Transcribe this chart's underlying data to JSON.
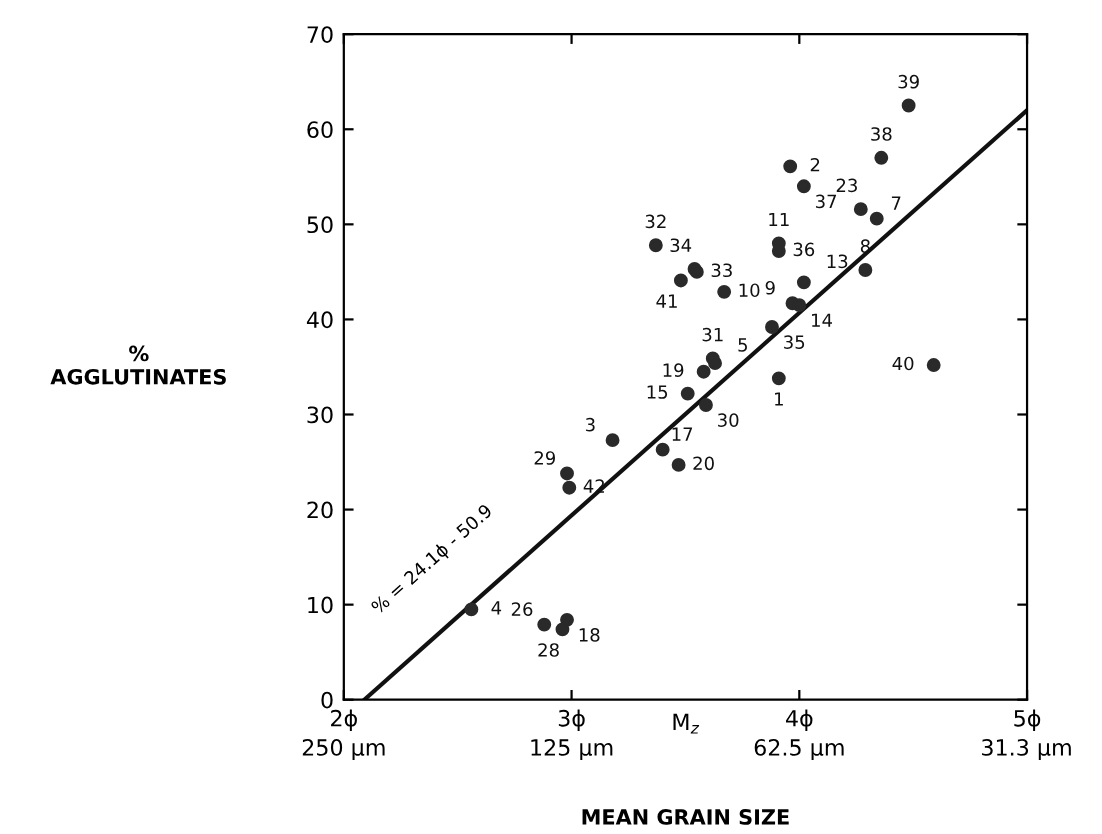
{
  "chart_data": {
    "type": "scatter",
    "xlabel": "MEAN GRAIN SIZE",
    "ylabel": "%\nAGGLUTINATES",
    "xlim": [
      2,
      5
    ],
    "ylim": [
      0,
      70
    ],
    "xticks": [
      {
        "value": 2,
        "label": "2ϕ"
      },
      {
        "value": 3,
        "label": "3ϕ"
      },
      {
        "value": 4,
        "label": "4ϕ"
      },
      {
        "value": 5,
        "label": "5ϕ"
      }
    ],
    "x2lim": [
      250,
      31.25
    ],
    "x2ticks": [
      {
        "value": 250,
        "label": "250 µm"
      },
      {
        "value": 125,
        "label": "125 µm"
      },
      {
        "value": 62.5,
        "label": "62.5 µm"
      },
      {
        "value": 31.3,
        "label": "31.3 µm"
      }
    ],
    "yticks": [
      0,
      10,
      20,
      30,
      40,
      50,
      60,
      70
    ],
    "log": "x2",
    "grid": false,
    "series": [
      {
        "color": "#2a2a2a",
        "marker": "circle",
        "x": [
          4.48,
          4.36,
          3.96,
          4.02,
          4.27,
          4.34,
          3.37,
          3.91,
          3.91,
          3.54,
          3.55,
          4.29,
          3.48,
          4.02,
          3.67,
          3.97,
          4.0,
          3.88,
          3.62,
          3.63,
          3.58,
          4.59,
          3.91,
          3.51,
          3.59,
          3.18,
          3.4,
          3.47,
          2.98,
          2.99,
          2.56,
          2.88,
          2.98,
          2.96
        ],
        "values": [
          62.5,
          57.0,
          56.1,
          54.0,
          51.6,
          50.6,
          47.8,
          48.0,
          47.2,
          45.3,
          45.0,
          45.2,
          44.1,
          43.9,
          42.9,
          41.7,
          41.5,
          39.2,
          35.9,
          35.4,
          34.5,
          35.2,
          33.8,
          32.2,
          31.0,
          27.3,
          26.3,
          24.7,
          23.8,
          22.3,
          9.5,
          7.9,
          8.4,
          7.4
        ]
      },
      {
        "type": "line",
        "color": "#111111",
        "x": [
          2.09,
          5
        ],
        "values": [
          0,
          62
        ]
      }
    ],
    "annotations": [
      {
        "text": "39",
        "x": 4.48,
        "y": 62.5
      },
      {
        "text": "38",
        "x": 4.36,
        "y": 57.0
      },
      {
        "text": "2",
        "x": 3.96,
        "y": 56.1
      },
      {
        "text": "37",
        "x": 4.02,
        "y": 54.0
      },
      {
        "text": "23",
        "x": 4.27,
        "y": 51.6
      },
      {
        "text": "7",
        "x": 4.34,
        "y": 50.6
      },
      {
        "text": "32",
        "x": 3.37,
        "y": 47.8
      },
      {
        "text": "11",
        "x": 3.91,
        "y": 48.0
      },
      {
        "text": "36",
        "x": 3.91,
        "y": 47.2
      },
      {
        "text": "34",
        "x": 3.54,
        "y": 45.3
      },
      {
        "text": "33",
        "x": 3.55,
        "y": 45.0
      },
      {
        "text": "8",
        "x": 4.29,
        "y": 45.2
      },
      {
        "text": "41",
        "x": 3.48,
        "y": 44.1
      },
      {
        "text": "13",
        "x": 4.02,
        "y": 43.9
      },
      {
        "text": "10",
        "x": 3.67,
        "y": 42.9
      },
      {
        "text": "9",
        "x": 3.97,
        "y": 41.7
      },
      {
        "text": "14",
        "x": 4.0,
        "y": 41.5
      },
      {
        "text": "35",
        "x": 3.88,
        "y": 39.2
      },
      {
        "text": "31",
        "x": 3.62,
        "y": 35.9
      },
      {
        "text": "5",
        "x": 3.63,
        "y": 35.4
      },
      {
        "text": "19",
        "x": 3.58,
        "y": 34.5
      },
      {
        "text": "40",
        "x": 4.59,
        "y": 35.2
      },
      {
        "text": "1",
        "x": 3.91,
        "y": 33.8
      },
      {
        "text": "15",
        "x": 3.51,
        "y": 32.2
      },
      {
        "text": "30",
        "x": 3.59,
        "y": 31.0
      },
      {
        "text": "3",
        "x": 3.18,
        "y": 27.3
      },
      {
        "text": "17",
        "x": 3.4,
        "y": 26.3
      },
      {
        "text": "20",
        "x": 3.47,
        "y": 24.7
      },
      {
        "text": "29",
        "x": 2.98,
        "y": 23.8
      },
      {
        "text": "42",
        "x": 2.99,
        "y": 22.3
      },
      {
        "text": "4",
        "x": 2.56,
        "y": 9.5
      },
      {
        "text": "26",
        "x": 2.88,
        "y": 7.9
      },
      {
        "text": "18",
        "x": 2.98,
        "y": 8.4
      },
      {
        "text": "28",
        "x": 2.96,
        "y": 7.4
      },
      "% = 24.1ϕ - 50.9",
      "M$_{z}$"
    ]
  }
}
